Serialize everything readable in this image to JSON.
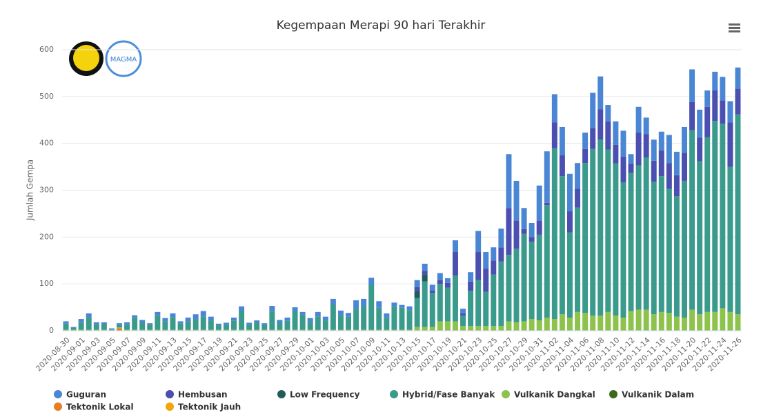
{
  "chart_data": {
    "type": "stacked_bar",
    "title": "Kegempaan Merapi 90 hari Terakhir",
    "y_label": "Jumlah Gempa",
    "ylim": [
      0,
      600
    ],
    "yticks": [
      0,
      100,
      200,
      300,
      400,
      500,
      600
    ],
    "grid": true,
    "legend": "bottom",
    "categories": [
      "2020-08-30",
      null,
      "2020-09-01",
      null,
      "2020-09-03",
      null,
      "2020-09-05",
      null,
      "2020-09-07",
      null,
      "2020-09-09",
      null,
      "2020-09-11",
      null,
      "2020-09-13",
      null,
      "2020-09-15",
      null,
      "2020-09-17",
      null,
      "2020-09-19",
      null,
      "2020-09-21",
      null,
      "2020-09-23",
      null,
      "2020-09-25",
      null,
      "2020-09-27",
      null,
      "2020-09-29",
      null,
      "2020-10-01",
      null,
      "2020-10-03",
      null,
      "2020-10-05",
      null,
      "2020-10-07",
      null,
      "2020-10-09",
      null,
      "2020-10-11",
      null,
      "2020-10-13",
      null,
      "2020-10-15",
      null,
      "2020-10-17",
      null,
      "2020-10-19",
      null,
      "2020-10-21",
      null,
      "2020-10-23",
      null,
      "2020-10-25",
      null,
      "2020-10-27",
      null,
      "2020-10-29",
      null,
      "2020-10-31",
      null,
      "2020-11-02",
      null,
      "2020-11-04",
      null,
      "2020-11-06",
      null,
      "2020-11-08",
      null,
      "2020-11-10",
      null,
      "2020-11-12",
      null,
      "2020-11-14",
      null,
      "2020-11-16",
      null,
      "2020-11-18",
      null,
      "2020-11-20",
      null,
      "2020-11-22",
      null,
      "2020-11-24",
      null,
      "2020-11-26"
    ],
    "series": [
      {
        "name": "Guguran",
        "color": "#4a86d4",
        "values": [
          5,
          2,
          7,
          8,
          5,
          4,
          2,
          4,
          6,
          6,
          6,
          4,
          8,
          7,
          8,
          5,
          8,
          10,
          12,
          8,
          4,
          5,
          7,
          10,
          5,
          5,
          4,
          12,
          6,
          7,
          8,
          6,
          8,
          10,
          8,
          12,
          10,
          8,
          18,
          15,
          15,
          14,
          10,
          8,
          6,
          8,
          15,
          15,
          12,
          15,
          10,
          25,
          10,
          20,
          45,
          35,
          28,
          40,
          115,
          85,
          45,
          30,
          75,
          110,
          60,
          60,
          80,
          55,
          35,
          75,
          70,
          35,
          50,
          55,
          20,
          55,
          35,
          45,
          40,
          60,
          50,
          55,
          70,
          60,
          35,
          40,
          50,
          45,
          45
        ]
      },
      {
        "name": "Hembusan",
        "color": "#4a4fb0",
        "values": [
          0,
          0,
          0,
          0,
          0,
          0,
          0,
          0,
          0,
          0,
          0,
          0,
          0,
          0,
          0,
          0,
          0,
          0,
          0,
          0,
          0,
          0,
          0,
          0,
          0,
          0,
          0,
          0,
          0,
          0,
          0,
          0,
          0,
          0,
          0,
          0,
          0,
          0,
          0,
          0,
          0,
          0,
          0,
          0,
          0,
          0,
          8,
          8,
          5,
          8,
          10,
          50,
          5,
          20,
          60,
          50,
          30,
          30,
          100,
          60,
          10,
          10,
          30,
          5,
          55,
          45,
          45,
          40,
          30,
          45,
          65,
          60,
          40,
          55,
          20,
          70,
          50,
          45,
          55,
          55,
          45,
          60,
          60,
          50,
          65,
          65,
          50,
          95,
          55
        ]
      },
      {
        "name": "Low Frequency",
        "color": "#1f5c5c",
        "values": [
          0,
          0,
          0,
          0,
          0,
          0,
          0,
          0,
          0,
          0,
          0,
          0,
          0,
          0,
          0,
          0,
          0,
          0,
          0,
          0,
          0,
          0,
          0,
          0,
          0,
          0,
          0,
          0,
          0,
          0,
          0,
          0,
          0,
          0,
          0,
          0,
          0,
          0,
          0,
          0,
          0,
          0,
          0,
          0,
          0,
          0,
          15,
          15,
          0,
          0,
          0,
          0,
          0,
          0,
          0,
          0,
          0,
          0,
          0,
          0,
          0,
          0,
          0,
          0,
          0,
          0,
          0,
          0,
          0,
          0,
          0,
          0,
          0,
          0,
          0,
          0,
          0,
          0,
          0,
          0,
          0,
          0,
          0,
          0,
          0,
          0,
          0,
          0,
          0
        ]
      },
      {
        "name": "Hybrid/Fase Banyak",
        "color": "#3a9a8c",
        "values": [
          13,
          4,
          16,
          27,
          11,
          12,
          1,
          5,
          10,
          25,
          15,
          10,
          30,
          18,
          27,
          13,
          18,
          23,
          28,
          20,
          9,
          10,
          19,
          40,
          10,
          15,
          10,
          39,
          15,
          19,
          40,
          32,
          17,
          28,
          20,
          54,
          31,
          28,
          45,
          51,
          96,
          47,
          25,
          50,
          47,
          42,
          62,
          97,
          73,
          80,
          72,
          98,
          22,
          75,
          98,
          73,
          110,
          138,
          142,
          157,
          187,
          165,
          183,
          240,
          365,
          295,
          182,
          223,
          320,
          356,
          376,
          347,
          325,
          289,
          295,
          308,
          325,
          283,
          290,
          265,
          257,
          292,
          383,
          327,
          373,
          408,
          394,
          310,
          427
        ]
      },
      {
        "name": "Vulkanik Dangkal",
        "color": "#8dc24c",
        "values": [
          2,
          2,
          2,
          2,
          2,
          2,
          2,
          2,
          2,
          2,
          2,
          2,
          2,
          2,
          2,
          2,
          2,
          2,
          2,
          2,
          2,
          2,
          2,
          2,
          2,
          2,
          2,
          2,
          2,
          2,
          2,
          2,
          2,
          2,
          2,
          2,
          2,
          2,
          2,
          2,
          2,
          2,
          2,
          2,
          2,
          2,
          8,
          8,
          8,
          20,
          20,
          20,
          10,
          10,
          10,
          10,
          10,
          10,
          20,
          18,
          20,
          25,
          22,
          28,
          25,
          35,
          28,
          40,
          38,
          32,
          32,
          40,
          32,
          28,
          42,
          45,
          45,
          35,
          40,
          38,
          30,
          28,
          45,
          35,
          40,
          40,
          48,
          40,
          35
        ]
      },
      {
        "name": "Vulkanik Dalam",
        "color": "#3b6a1c",
        "values": [
          0,
          0,
          0,
          0,
          0,
          0,
          0,
          0,
          0,
          0,
          0,
          0,
          0,
          0,
          0,
          0,
          0,
          0,
          0,
          0,
          0,
          0,
          0,
          0,
          0,
          0,
          0,
          0,
          0,
          0,
          0,
          0,
          0,
          0,
          0,
          0,
          0,
          0,
          0,
          0,
          0,
          0,
          0,
          0,
          0,
          0,
          0,
          0,
          0,
          0,
          0,
          0,
          0,
          0,
          0,
          0,
          0,
          0,
          0,
          0,
          0,
          0,
          0,
          0,
          0,
          0,
          0,
          0,
          0,
          0,
          0,
          0,
          0,
          0,
          0,
          0,
          0,
          0,
          0,
          0,
          0,
          0,
          0,
          0,
          0,
          0,
          0,
          0,
          0
        ]
      },
      {
        "name": "Tektonik Lokal",
        "color": "#e67e22",
        "values": [
          0,
          0,
          0,
          0,
          0,
          0,
          0,
          5,
          0,
          0,
          0,
          0,
          0,
          0,
          0,
          0,
          0,
          0,
          0,
          0,
          0,
          0,
          0,
          0,
          0,
          0,
          0,
          0,
          0,
          0,
          0,
          0,
          0,
          0,
          0,
          0,
          0,
          0,
          0,
          0,
          0,
          0,
          0,
          0,
          0,
          0,
          0,
          0,
          0,
          0,
          0,
          0,
          0,
          0,
          0,
          0,
          0,
          0,
          0,
          0,
          0,
          0,
          0,
          0,
          0,
          0,
          0,
          0,
          0,
          0,
          0,
          0,
          0,
          0,
          0,
          0,
          0,
          0,
          0,
          0,
          0,
          0,
          0,
          0,
          0,
          0,
          0,
          0,
          0
        ]
      },
      {
        "name": "Tektonik Jauh",
        "color": "#f2a60c",
        "values": [
          0,
          0,
          0,
          0,
          0,
          0,
          0,
          0,
          0,
          0,
          0,
          0,
          0,
          0,
          0,
          0,
          0,
          0,
          0,
          0,
          0,
          0,
          0,
          0,
          0,
          0,
          0,
          0,
          0,
          0,
          0,
          0,
          0,
          0,
          0,
          0,
          0,
          0,
          0,
          0,
          0,
          0,
          0,
          0,
          0,
          0,
          0,
          0,
          0,
          0,
          0,
          0,
          0,
          0,
          0,
          0,
          0,
          0,
          0,
          0,
          0,
          0,
          0,
          0,
          0,
          0,
          0,
          0,
          0,
          0,
          0,
          0,
          0,
          0,
          0,
          0,
          0,
          0,
          0,
          0,
          0,
          0,
          0,
          0,
          0,
          0,
          0,
          0,
          0
        ]
      }
    ]
  },
  "logo": {
    "text": "MAGMA"
  }
}
